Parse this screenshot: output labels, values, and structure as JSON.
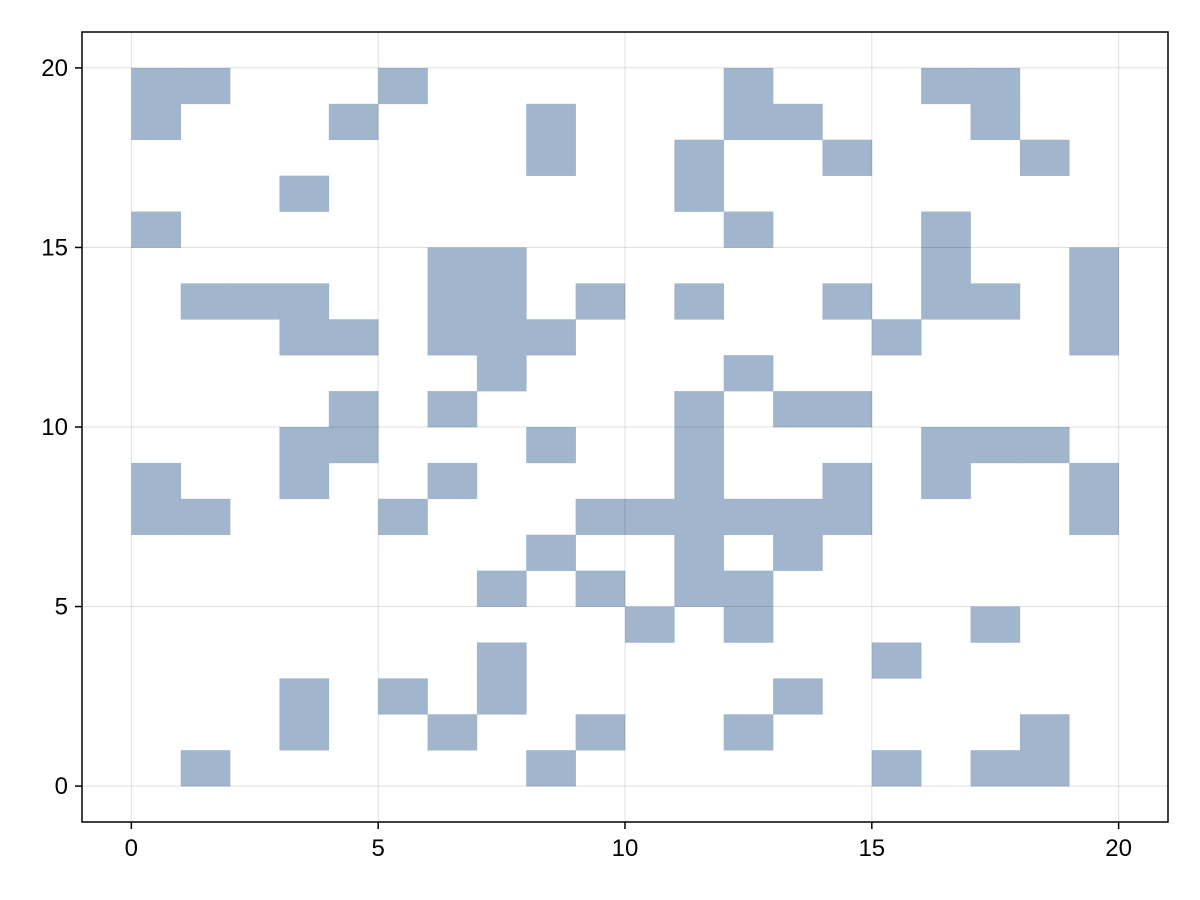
{
  "chart_data": {
    "type": "heatmap",
    "title": "",
    "xlabel": "",
    "ylabel": "",
    "xlim": [
      -1,
      21
    ],
    "ylim": [
      -1,
      21
    ],
    "x_ticks": [
      0,
      5,
      10,
      15,
      20
    ],
    "y_ticks": [
      0,
      5,
      10,
      15,
      20
    ],
    "grid": true,
    "legend": "none",
    "cell_size": 1,
    "fill_color": "#a1b5cc",
    "filled_cells_x_y_lower_left": [
      [
        0,
        19
      ],
      [
        1,
        19
      ],
      [
        5,
        19
      ],
      [
        12,
        19
      ],
      [
        16,
        19
      ],
      [
        17,
        19
      ],
      [
        0,
        18
      ],
      [
        4,
        18
      ],
      [
        8,
        18
      ],
      [
        12,
        18
      ],
      [
        13,
        18
      ],
      [
        17,
        18
      ],
      [
        8,
        17
      ],
      [
        11,
        17
      ],
      [
        14,
        17
      ],
      [
        18,
        17
      ],
      [
        3,
        16
      ],
      [
        11,
        16
      ],
      [
        0,
        15
      ],
      [
        12,
        15
      ],
      [
        16,
        15
      ],
      [
        6,
        14
      ],
      [
        7,
        14
      ],
      [
        16,
        14
      ],
      [
        19,
        14
      ],
      [
        1,
        13
      ],
      [
        2,
        13
      ],
      [
        3,
        13
      ],
      [
        6,
        13
      ],
      [
        7,
        13
      ],
      [
        9,
        13
      ],
      [
        11,
        13
      ],
      [
        14,
        13
      ],
      [
        16,
        13
      ],
      [
        17,
        13
      ],
      [
        19,
        13
      ],
      [
        3,
        12
      ],
      [
        4,
        12
      ],
      [
        6,
        12
      ],
      [
        7,
        12
      ],
      [
        8,
        12
      ],
      [
        15,
        12
      ],
      [
        19,
        12
      ],
      [
        7,
        11
      ],
      [
        12,
        11
      ],
      [
        4,
        10
      ],
      [
        6,
        10
      ],
      [
        11,
        10
      ],
      [
        13,
        10
      ],
      [
        14,
        10
      ],
      [
        3,
        9
      ],
      [
        4,
        9
      ],
      [
        8,
        9
      ],
      [
        11,
        9
      ],
      [
        16,
        9
      ],
      [
        17,
        9
      ],
      [
        18,
        9
      ],
      [
        0,
        8
      ],
      [
        3,
        8
      ],
      [
        6,
        8
      ],
      [
        11,
        8
      ],
      [
        14,
        8
      ],
      [
        16,
        8
      ],
      [
        19,
        8
      ],
      [
        0,
        7
      ],
      [
        1,
        7
      ],
      [
        5,
        7
      ],
      [
        9,
        7
      ],
      [
        10,
        7
      ],
      [
        11,
        7
      ],
      [
        12,
        7
      ],
      [
        13,
        7
      ],
      [
        14,
        7
      ],
      [
        19,
        7
      ],
      [
        8,
        6
      ],
      [
        11,
        6
      ],
      [
        13,
        6
      ],
      [
        7,
        5
      ],
      [
        9,
        5
      ],
      [
        11,
        5
      ],
      [
        12,
        5
      ],
      [
        10,
        4
      ],
      [
        12,
        4
      ],
      [
        17,
        4
      ],
      [
        7,
        3
      ],
      [
        15,
        3
      ],
      [
        3,
        2
      ],
      [
        5,
        2
      ],
      [
        7,
        2
      ],
      [
        13,
        2
      ],
      [
        3,
        1
      ],
      [
        6,
        1
      ],
      [
        9,
        1
      ],
      [
        12,
        1
      ],
      [
        18,
        1
      ],
      [
        1,
        0
      ],
      [
        8,
        0
      ],
      [
        15,
        0
      ],
      [
        17,
        0
      ],
      [
        18,
        0
      ]
    ]
  }
}
